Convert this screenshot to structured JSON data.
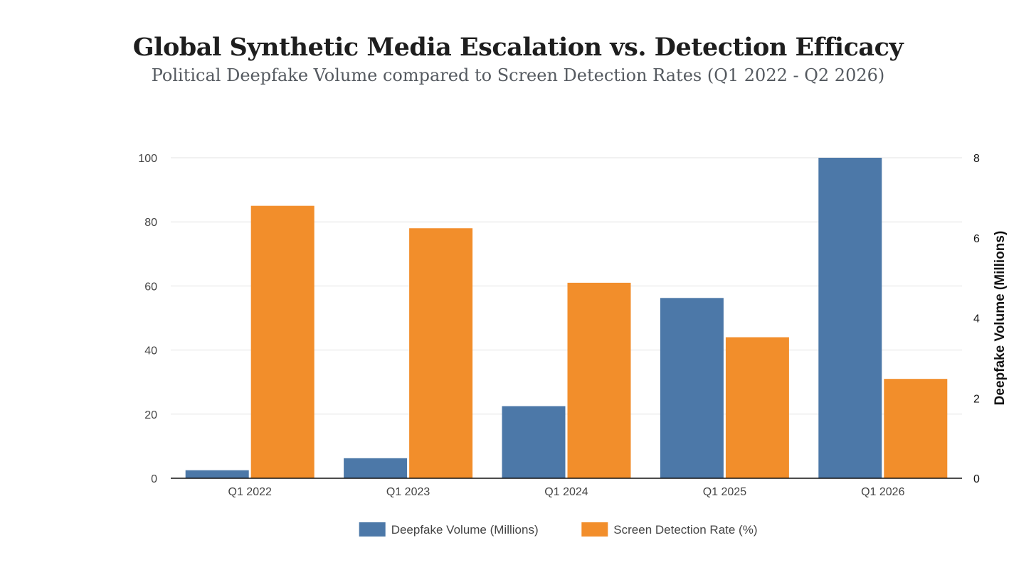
{
  "chart_data": {
    "type": "bar",
    "title": "Global Synthetic Media Escalation vs. Detection Efficacy",
    "subtitle": "Political Deepfake Volume compared to Screen Detection Rates (Q1 2022 - Q2 2026)",
    "categories": [
      "Q1 2022",
      "Q1 2023",
      "Q1 2024",
      "Q1 2025",
      "Q1 2026"
    ],
    "series": [
      {
        "name": "Deepfake Volume (Millions)",
        "axis": "right",
        "color": "#4c78a8",
        "values": [
          0.2,
          0.5,
          1.8,
          4.5,
          8.0
        ]
      },
      {
        "name": "Screen Detection Rate (%)",
        "axis": "left",
        "color": "#f28e2b",
        "values": [
          85,
          78,
          61,
          44,
          31
        ]
      }
    ],
    "y_left": {
      "ylim": [
        0,
        100
      ],
      "ticks": [
        0,
        20,
        40,
        60,
        80,
        100
      ],
      "label": ""
    },
    "y_right": {
      "ylim": [
        0,
        8
      ],
      "ticks": [
        0,
        2,
        4,
        6,
        8
      ],
      "label": "Deepfake Volume (Millions)"
    },
    "xlabel": "",
    "grid": true,
    "legend": "bottom-center"
  }
}
